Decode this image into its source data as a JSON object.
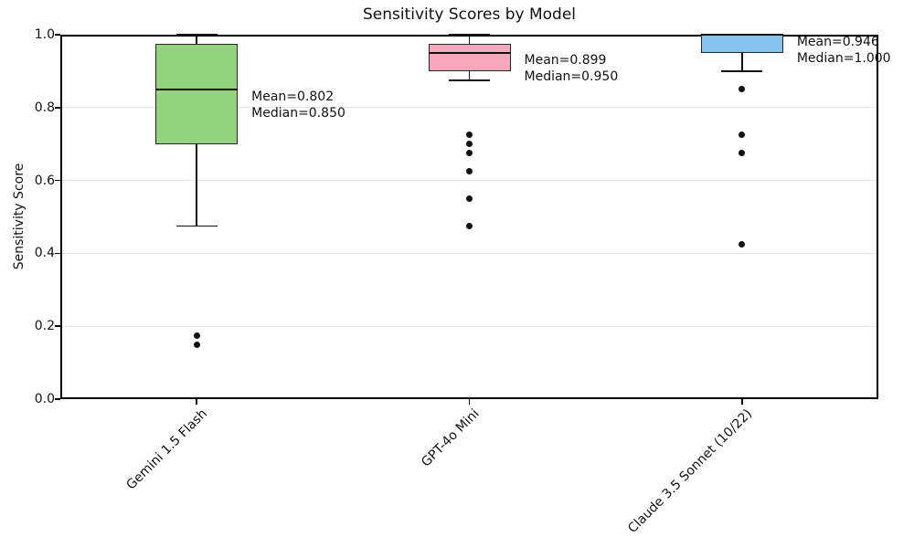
{
  "chart_data": {
    "type": "box",
    "title": "Sensitivity Scores by Model",
    "xlabel": "",
    "ylabel": "Sensitivity Score",
    "ylim": [
      0.0,
      1.0
    ],
    "yticks": [
      0.0,
      0.2,
      0.4,
      0.6,
      0.8,
      1.0
    ],
    "grid": "horizontal",
    "legend": "none",
    "categories": [
      "Gemini 1.5 Flash",
      "GPT-4o Mini",
      "Claude 3.5 Sonnet (10/22)"
    ],
    "series": [
      {
        "name": "Gemini 1.5 Flash",
        "box_color": "#94d37e",
        "whisker_low": 0.475,
        "q1": 0.7,
        "median": 0.85,
        "q3": 0.975,
        "whisker_high": 1.0,
        "outliers": [
          0.175,
          0.15
        ],
        "mean": 0.802,
        "annotation_lines": [
          "Mean=0.802",
          "Median=0.850"
        ]
      },
      {
        "name": "GPT-4o Mini",
        "box_color": "#f8a8bc",
        "whisker_low": 0.875,
        "q1": 0.9,
        "median": 0.95,
        "q3": 0.975,
        "whisker_high": 1.0,
        "outliers": [
          0.725,
          0.7,
          0.675,
          0.625,
          0.55,
          0.475
        ],
        "mean": 0.899,
        "annotation_lines": [
          "Mean=0.899",
          "Median=0.950"
        ]
      },
      {
        "name": "Claude 3.5 Sonnet (10/22)",
        "box_color": "#88c3ed",
        "whisker_low": 0.9,
        "q1": 0.95,
        "median": 1.0,
        "q3": 1.0,
        "whisker_high": 1.0,
        "outliers": [
          0.85,
          0.725,
          0.675,
          0.425
        ],
        "mean": 0.946,
        "annotation_lines": [
          "Mean=0.946",
          "Median=1.000"
        ]
      }
    ],
    "colors": {
      "box_edge": "#262626",
      "median_line": "#111111",
      "whisker": "#111111",
      "outlier": "#111111",
      "grid": "#e8e8e8",
      "spine": "#000000",
      "text": "#111111"
    }
  }
}
